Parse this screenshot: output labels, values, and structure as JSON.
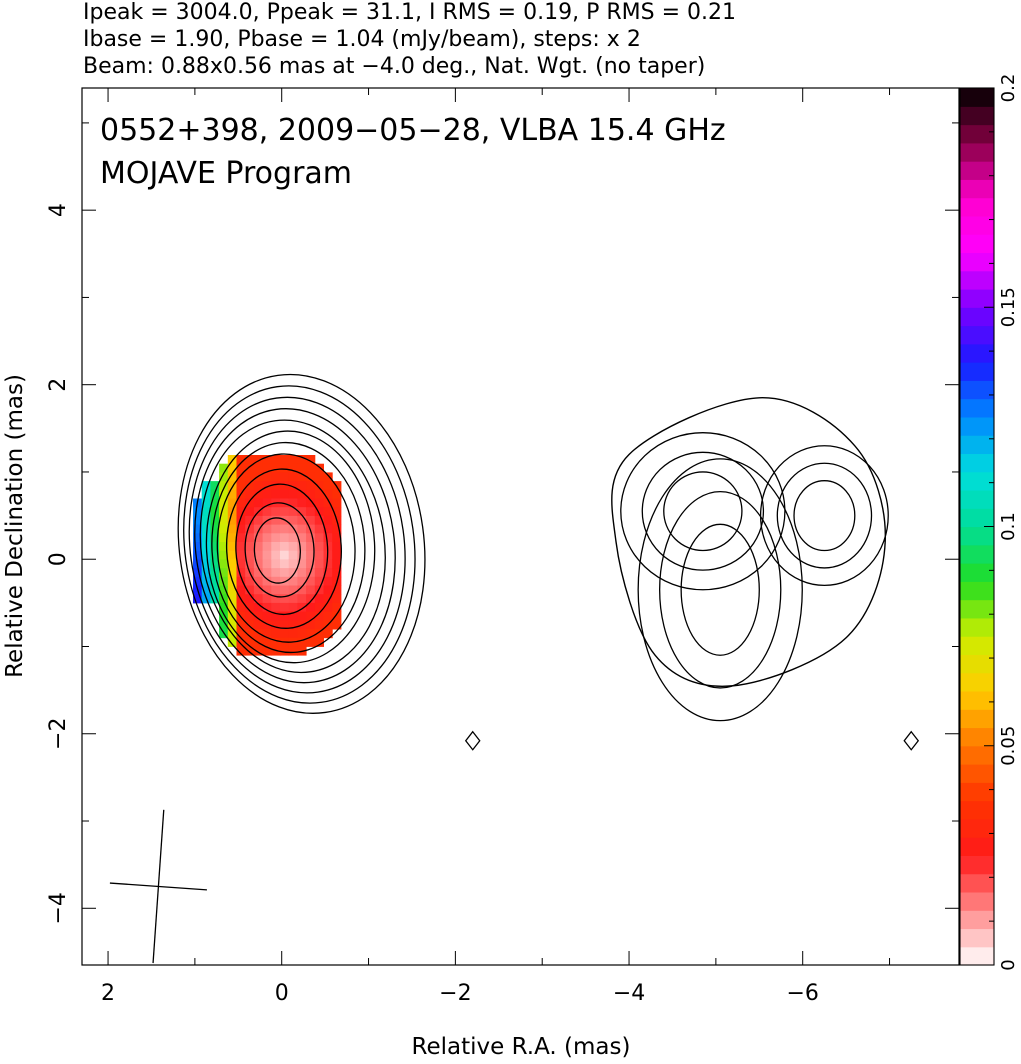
{
  "header_lines": [
    "Ipeak = 3004.0, Ppeak = 31.1, I RMS = 0.19, P RMS = 0.21",
    "Ibase = 1.90, Pbase = 1.04 (mJy/beam), steps: x 2",
    "Beam: 0.88x0.56 mas at −4.0 deg., Nat. Wgt. (no taper)"
  ],
  "chart_data": {
    "type": "heatmap",
    "title_lines": [
      "0552+398, 2009−05−28, VLBA 15.4 GHz",
      "MOJAVE Program"
    ],
    "xlabel": "Relative R.A. (mas)",
    "ylabel": "Relative Declination (mas)",
    "xlim": [
      2.3,
      -7.8
    ],
    "ylim": [
      -4.65,
      5.4
    ],
    "x_ticks": [
      2,
      0,
      -2,
      -4,
      -6
    ],
    "x_tick_labels": [
      "2",
      "0",
      "−2",
      "−4",
      "−6"
    ],
    "y_ticks": [
      4,
      2,
      0,
      -2,
      -4
    ],
    "y_tick_labels": [
      "4",
      "2",
      "0",
      "−2",
      "−4"
    ],
    "colorbar": {
      "min": 0,
      "max": 0.2,
      "ticks": [
        0,
        0.05,
        0.1,
        0.15,
        0.2
      ],
      "tick_labels": [
        "0",
        "0.05",
        "0.1",
        "0.15",
        "0.2"
      ],
      "stops": [
        "#ffffff",
        "#ff8a8a",
        "#ff1a1a",
        "#ff3300",
        "#ff7700",
        "#ffcc00",
        "#ccee00",
        "#22dd22",
        "#00dd99",
        "#00dddd",
        "#0088ff",
        "#1a1aff",
        "#7a00ff",
        "#ff00ff",
        "#ff00cc",
        "#880044",
        "#000000"
      ]
    },
    "stokes_i_contours": {
      "core": {
        "center": [
          0.05,
          0.1
        ],
        "radii": [
          [
            0.3,
            0.45
          ],
          [
            0.45,
            0.65
          ],
          [
            0.6,
            0.9
          ],
          [
            0.75,
            1.1
          ],
          [
            0.9,
            1.3
          ],
          [
            1.0,
            1.45
          ],
          [
            1.1,
            1.6
          ],
          [
            1.2,
            1.75
          ],
          [
            1.3,
            1.9
          ],
          [
            1.4,
            2.05
          ],
          [
            1.5,
            2.2
          ],
          [
            1.6,
            2.35
          ]
        ]
      },
      "jet": {
        "outer": [
          [
            -4.0,
            1.2
          ],
          [
            -5.5,
            1.85
          ],
          [
            -6.6,
            1.3
          ],
          [
            -6.95,
            0.2
          ],
          [
            -6.5,
            -0.9
          ],
          [
            -5.2,
            -1.45
          ],
          [
            -4.3,
            -1.1
          ],
          [
            -3.85,
            0.2
          ]
        ],
        "inner_knots": [
          [
            -5.05,
            -0.35,
            0.45,
            0.75
          ],
          [
            -4.85,
            0.55,
            0.45,
            0.45
          ],
          [
            -6.25,
            0.5,
            0.35,
            0.4
          ]
        ]
      },
      "noise_blobs": [
        [
          -2.2,
          -2.08
        ],
        [
          -7.25,
          -2.08
        ]
      ]
    },
    "beam": {
      "major_mas": 0.88,
      "minor_mas": 0.56,
      "pa_deg": -4.0,
      "center": [
        1.42,
        -3.75
      ]
    }
  }
}
